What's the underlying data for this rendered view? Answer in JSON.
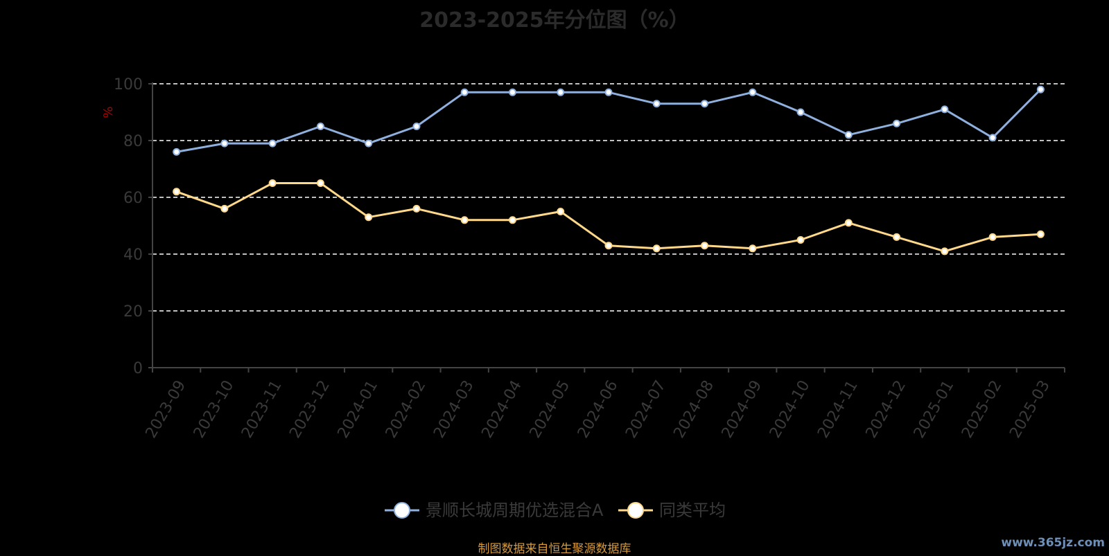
{
  "chart_title": "2023-2025年分位图（%）",
  "source_note": "制图数据来自恒生聚源数据库",
  "watermark": "www.365jz.com",
  "chart_data": {
    "type": "line",
    "title": "2023-2025年分位图（%）",
    "xlabel": "",
    "ylabel": "%",
    "ylim": [
      0,
      100
    ],
    "yticks": [
      0,
      20,
      40,
      60,
      80,
      100
    ],
    "grid": true,
    "grid_style": "dashed",
    "legend_position": "bottom",
    "categories": [
      "2023-09",
      "2023-10",
      "2023-11",
      "2023-12",
      "2024-01",
      "2024-02",
      "2024-03",
      "2024-04",
      "2024-05",
      "2024-06",
      "2024-07",
      "2024-08",
      "2024-09",
      "2024-10",
      "2024-11",
      "2024-12",
      "2025-01",
      "2025-02",
      "2025-03"
    ],
    "series": [
      {
        "name": "景顺长城周期优选混合A",
        "color": "#8fb0de",
        "values": [
          76,
          79,
          79,
          85,
          79,
          85,
          97,
          97,
          97,
          97,
          93,
          93,
          97,
          90,
          82,
          86,
          91,
          81,
          98
        ]
      },
      {
        "name": "同类平均",
        "color": "#ffd88a",
        "values": [
          62,
          56,
          65,
          65,
          53,
          56,
          52,
          52,
          55,
          43,
          42,
          43,
          42,
          45,
          51,
          46,
          41,
          46,
          47
        ]
      }
    ]
  }
}
